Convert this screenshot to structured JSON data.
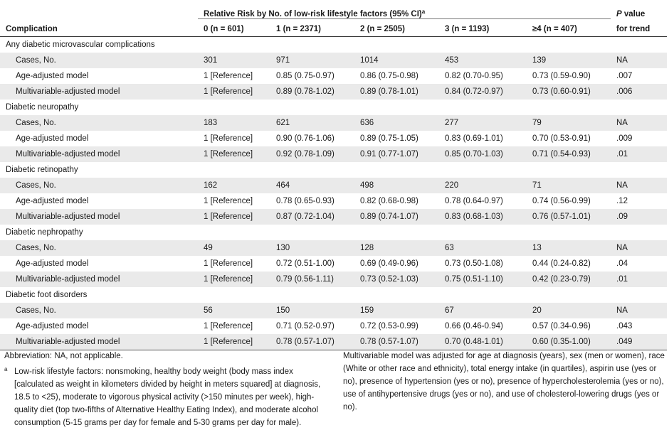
{
  "table": {
    "header": {
      "span_title": "Relative Risk by No. of low-risk lifestyle factors (95% CI)",
      "span_title_mark": "a",
      "col_complication": "Complication",
      "col_0": "0 (n = 601)",
      "col_1": "1 (n = 2371)",
      "col_2": "2 (n = 2505)",
      "col_3": "3 (n = 1193)",
      "col_4": "≥4 (n = 407)",
      "p_line1": "P value",
      "p_line1_italic": "P",
      "p_line1_rest": " value",
      "p_line2": "for trend"
    },
    "groups": [
      {
        "name": "Any diabetic microvascular complications",
        "rows": [
          {
            "label": "Cases, No.",
            "v": [
              "301",
              "971",
              "1014",
              "453",
              "139"
            ],
            "p": "NA"
          },
          {
            "label": "Age-adjusted model",
            "v": [
              "1 [Reference]",
              "0.85 (0.75-0.97)",
              "0.86 (0.75-0.98)",
              "0.82 (0.70-0.95)",
              "0.73 (0.59-0.90)"
            ],
            "p": ".007"
          },
          {
            "label": "Multivariable-adjusted model",
            "v": [
              "1 [Reference]",
              "0.89 (0.78-1.02)",
              "0.89 (0.78-1.01)",
              "0.84 (0.72-0.97)",
              "0.73 (0.60-0.91)"
            ],
            "p": ".006"
          }
        ]
      },
      {
        "name": "Diabetic neuropathy",
        "rows": [
          {
            "label": "Cases, No.",
            "v": [
              "183",
              "621",
              "636",
              "277",
              "79"
            ],
            "p": "NA"
          },
          {
            "label": "Age-adjusted model",
            "v": [
              "1 [Reference]",
              "0.90 (0.76-1.06)",
              "0.89 (0.75-1.05)",
              "0.83 (0.69-1.01)",
              "0.70 (0.53-0.91)"
            ],
            "p": ".009"
          },
          {
            "label": "Multivariable-adjusted model",
            "v": [
              "1 [Reference]",
              "0.92 (0.78-1.09)",
              "0.91 (0.77-1.07)",
              "0.85 (0.70-1.03)",
              "0.71 (0.54-0.93)"
            ],
            "p": ".01"
          }
        ]
      },
      {
        "name": "Diabetic retinopathy",
        "rows": [
          {
            "label": "Cases, No.",
            "v": [
              "162",
              "464",
              "498",
              "220",
              "71"
            ],
            "p": "NA"
          },
          {
            "label": "Age-adjusted model",
            "v": [
              "1 [Reference]",
              "0.78 (0.65-0.93)",
              "0.82 (0.68-0.98)",
              "0.78 (0.64-0.97)",
              "0.74 (0.56-0.99)"
            ],
            "p": ".12"
          },
          {
            "label": "Multivariable-adjusted model",
            "v": [
              "1 [Reference]",
              "0.87 (0.72-1.04)",
              "0.89 (0.74-1.07)",
              "0.83 (0.68-1.03)",
              "0.76 (0.57-1.01)"
            ],
            "p": ".09"
          }
        ]
      },
      {
        "name": "Diabetic nephropathy",
        "rows": [
          {
            "label": "Cases, No.",
            "v": [
              "49",
              "130",
              "128",
              "63",
              "13"
            ],
            "p": "NA"
          },
          {
            "label": "Age-adjusted model",
            "v": [
              "1 [Reference]",
              "0.72 (0.51-1.00)",
              "0.69 (0.49-0.96)",
              "0.73 (0.50-1.08)",
              "0.44 (0.24-0.82)"
            ],
            "p": ".04"
          },
          {
            "label": "Multivariable-adjusted model",
            "v": [
              "1 [Reference]",
              "0.79 (0.56-1.11)",
              "0.73 (0.52-1.03)",
              "0.75 (0.51-1.10)",
              "0.42 (0.23-0.79)"
            ],
            "p": ".01"
          }
        ]
      },
      {
        "name": "Diabetic foot disorders",
        "rows": [
          {
            "label": "Cases, No.",
            "v": [
              "56",
              "150",
              "159",
              "67",
              "20"
            ],
            "p": "NA"
          },
          {
            "label": "Age-adjusted model",
            "v": [
              "1 [Reference]",
              "0.71 (0.52-0.97)",
              "0.72 (0.53-0.99)",
              "0.66 (0.46-0.94)",
              "0.57 (0.34-0.96)"
            ],
            "p": ".043"
          },
          {
            "label": "Multivariable-adjusted model",
            "v": [
              "1 [Reference]",
              "0.78 (0.57-1.07)",
              "0.78 (0.57-1.07)",
              "0.70 (0.48-1.01)",
              "0.60 (0.35-1.00)"
            ],
            "p": ".049"
          }
        ]
      }
    ]
  },
  "notes": {
    "abbreviation": "Abbreviation: NA, not applicable.",
    "footnote_mark": "a",
    "footnote_a": "Low-risk lifestyle factors: nonsmoking, healthy body weight (body mass index [calculated as weight in kilometers divided by height in meters squared] at diagnosis, 18.5 to <25), moderate to vigorous physical activity (>150 minutes per week), high-quality diet (top two-fifths of Alternative Healthy Eating Index), and moderate alcohol consumption (5-15 grams per day for female and 5-30 grams per day for male).",
    "multivariable": "Multivariable model was adjusted for age at diagnosis (years), sex (men or women), race (White or other race and ethnicity), total energy intake (in quartiles), aspirin use (yes or no), presence of hypertension (yes or no), presence of hypercholesterolemia (yes or no), use of antihypertensive drugs (yes or no), and use of cholesterol-lowering drugs (yes or no)."
  },
  "colors": {
    "shade": "#eaeaea",
    "text": "#1a1a1a",
    "rule": "#333333"
  }
}
